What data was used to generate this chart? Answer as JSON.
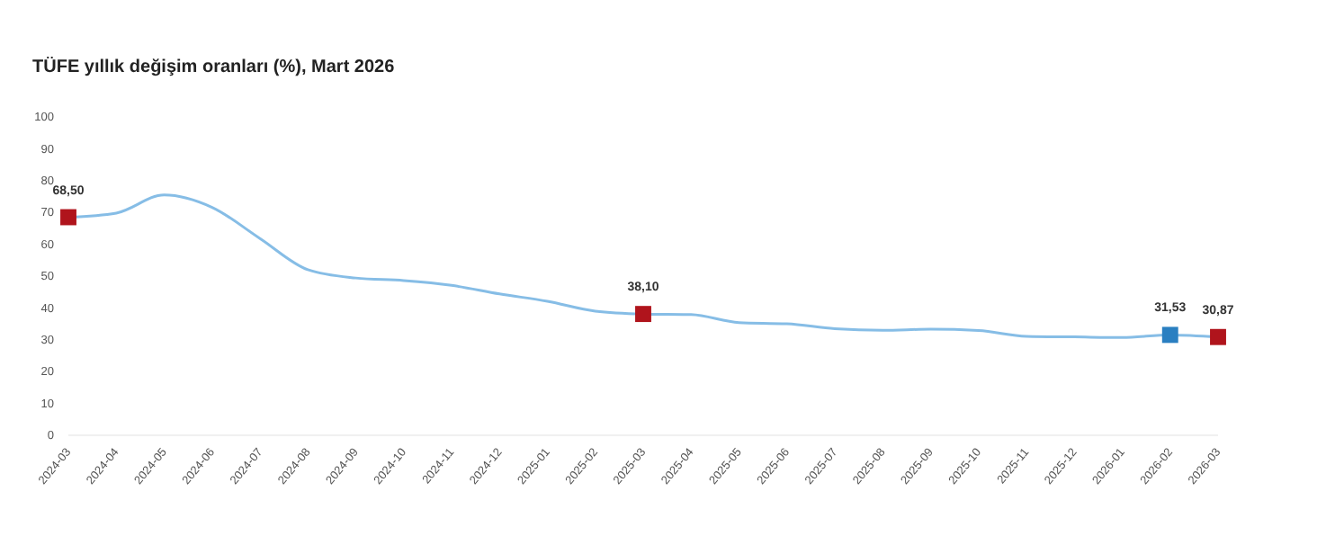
{
  "chart_data": {
    "type": "line",
    "title": "TÜFE yıllık değişim oranları (%), Mart 2026",
    "categories": [
      "2024-03",
      "2024-04",
      "2024-05",
      "2024-06",
      "2024-07",
      "2024-08",
      "2024-09",
      "2024-10",
      "2024-11",
      "2024-12",
      "2025-01",
      "2025-02",
      "2025-03",
      "2025-04",
      "2025-05",
      "2025-06",
      "2025-07",
      "2025-08",
      "2025-09",
      "2025-10",
      "2025-11",
      "2025-12",
      "2026-01",
      "2026-02",
      "2026-03"
    ],
    "series": [
      {
        "color": "#86bde6",
        "values": [
          68.5,
          69.8,
          75.5,
          71.6,
          61.8,
          52,
          49.4,
          48.6,
          47.1,
          44.4,
          42.1,
          39,
          38.1,
          37.9,
          35.4,
          35,
          33.5,
          33,
          33.3,
          32.9,
          31.1,
          30.9,
          30.7,
          31.53,
          30.87
        ]
      },
      {
        "type": "scatter",
        "marker": "square",
        "values": [
          68.5,
          null,
          null,
          null,
          null,
          null,
          null,
          null,
          null,
          null,
          null,
          null,
          38.1,
          null,
          null,
          null,
          null,
          null,
          null,
          null,
          null,
          null,
          null,
          31.53,
          30.87
        ],
        "colors": [
          "#b0141c",
          null,
          null,
          null,
          null,
          null,
          null,
          null,
          null,
          null,
          null,
          null,
          "#b0141c",
          null,
          null,
          null,
          null,
          null,
          null,
          null,
          null,
          null,
          null,
          "#2a7fc1",
          "#b0141c"
        ],
        "value_labels": [
          "68,50",
          null,
          null,
          null,
          null,
          null,
          null,
          null,
          null,
          null,
          null,
          null,
          "38,10",
          null,
          null,
          null,
          null,
          null,
          null,
          null,
          null,
          null,
          null,
          "31,53",
          "30,87"
        ]
      }
    ],
    "ylim": [
      0,
      100
    ],
    "yticks": [
      0,
      10,
      20,
      30,
      40,
      50,
      60,
      70,
      80,
      90,
      100
    ],
    "grid": false
  }
}
